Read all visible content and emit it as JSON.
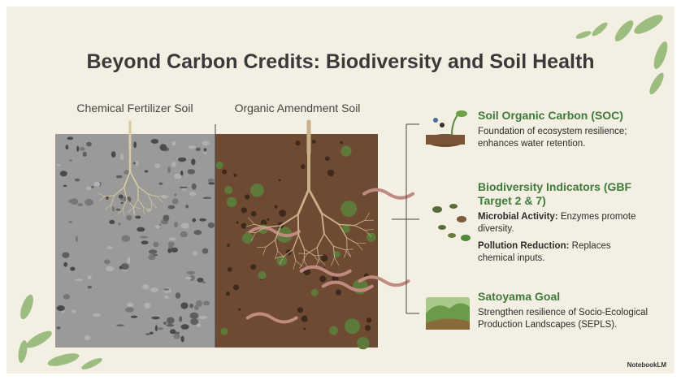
{
  "title": "Beyond Carbon Credits: Biodiversity and Soil Health",
  "soil_panels": [
    {
      "label": "Chemical Fertilizer Soil"
    },
    {
      "label": "Organic Amendment Soil"
    }
  ],
  "items": [
    {
      "heading": "Soil Organic Carbon (SOC)",
      "body": "Foundation of ecosystem resilience; enhances water retention."
    },
    {
      "heading": "Biodiversity Indicators (GBF Target 2 & 7)",
      "points": [
        {
          "label": "Microbial Activity:",
          "text": "Enzymes promote diversity."
        },
        {
          "label": "Pollution Reduction:",
          "text": "Replaces chemical inputs."
        }
      ]
    },
    {
      "heading": "Satoyama Goal",
      "body": "Strengthen resilience of Socio-Ecological Production Landscapes (SEPLS)."
    }
  ],
  "watermark": "NotebookLM"
}
